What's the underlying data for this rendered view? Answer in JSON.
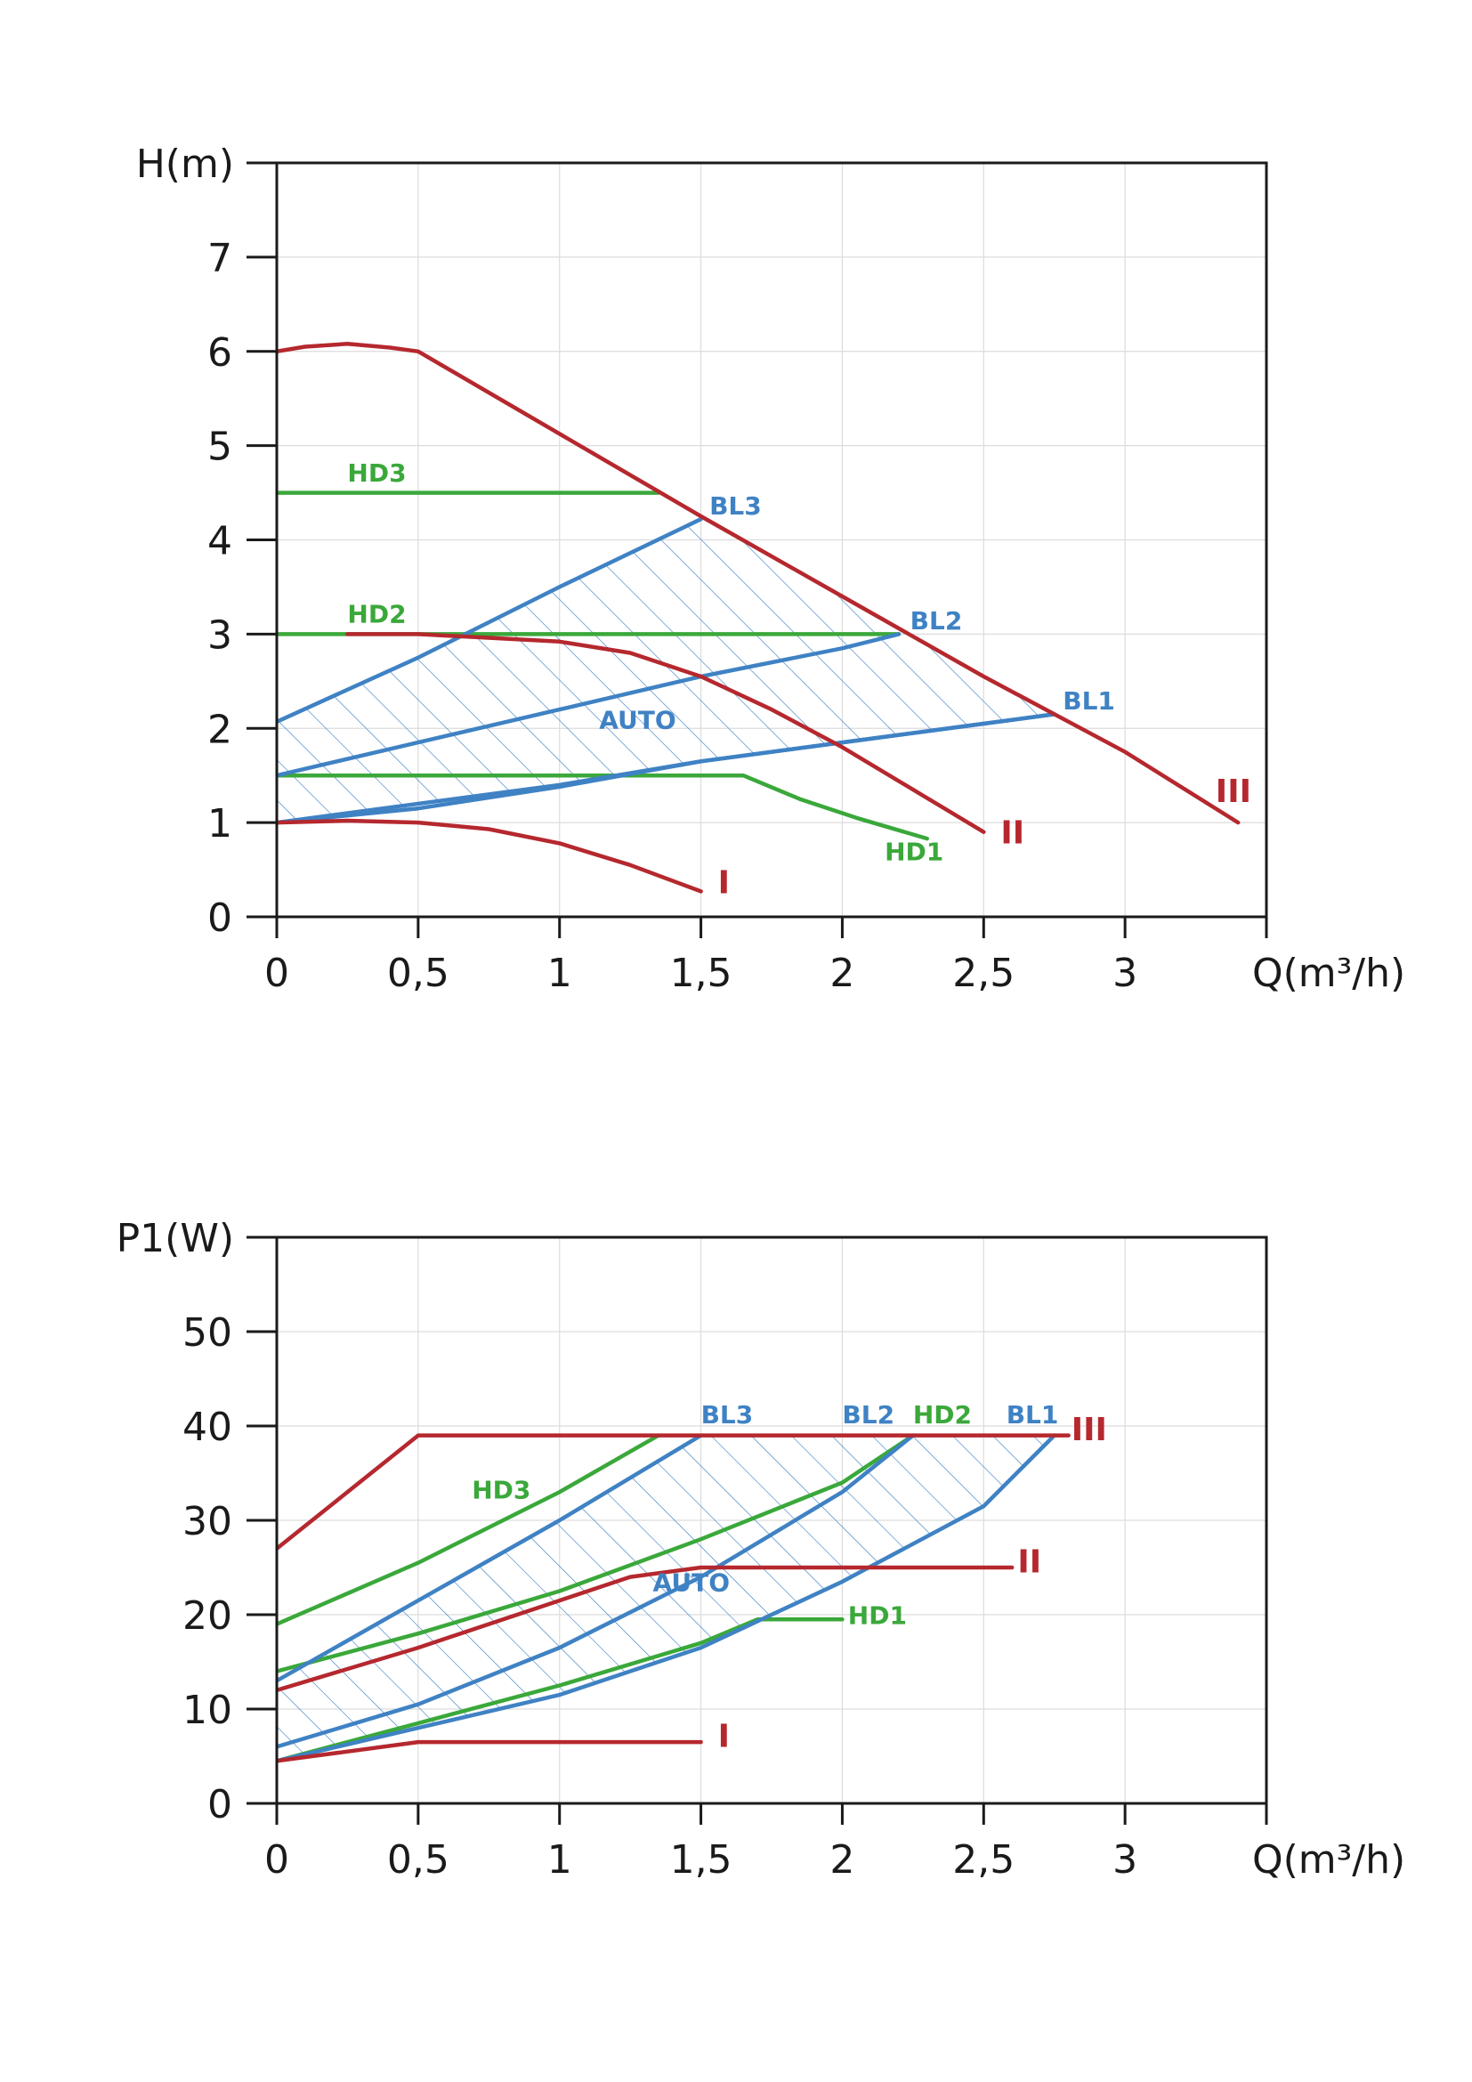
{
  "chart_data": [
    {
      "type": "line",
      "xlabel": "Q(m³/h)",
      "ylabel": "H(m)",
      "xlim": [
        0,
        3.5
      ],
      "ylim": [
        0,
        8
      ],
      "x_ticks": [
        0,
        0.5,
        1,
        1.5,
        2,
        2.5,
        3
      ],
      "x_tick_labels": [
        "0",
        "0,5",
        "1",
        "1,5",
        "2",
        "2,5",
        "3"
      ],
      "y_ticks": [
        0,
        1,
        2,
        3,
        4,
        5,
        6,
        7
      ],
      "y_tick_labels": [
        "0",
        "1",
        "2",
        "3",
        "4",
        "5",
        "6",
        "7"
      ],
      "grid": true,
      "hatched_region": "AUTO",
      "colors": {
        "red": "#b5282e",
        "blue": "#3f82c4",
        "green": "#3aa83a"
      },
      "series": [
        {
          "name": "I",
          "color": "red",
          "points": [
            [
              0,
              1.0
            ],
            [
              0.25,
              1.02
            ],
            [
              0.5,
              1.0
            ],
            [
              0.75,
              0.93
            ],
            [
              1.0,
              0.78
            ],
            [
              1.25,
              0.55
            ],
            [
              1.5,
              0.27
            ]
          ]
        },
        {
          "name": "II",
          "color": "red",
          "points": [
            [
              0.25,
              3.0
            ],
            [
              0.5,
              3.0
            ],
            [
              1.0,
              2.92
            ],
            [
              1.25,
              2.8
            ],
            [
              1.5,
              2.55
            ],
            [
              1.75,
              2.2
            ],
            [
              2.0,
              1.8
            ],
            [
              2.25,
              1.35
            ],
            [
              2.5,
              0.9
            ]
          ]
        },
        {
          "name": "III",
          "color": "red",
          "points": [
            [
              0,
              6.0
            ],
            [
              0.1,
              6.05
            ],
            [
              0.25,
              6.08
            ],
            [
              0.4,
              6.04
            ],
            [
              0.5,
              6.0
            ],
            [
              1.5,
              4.25
            ],
            [
              2.0,
              3.4
            ],
            [
              2.5,
              2.55
            ],
            [
              3.0,
              1.75
            ],
            [
              3.4,
              1.0
            ]
          ]
        },
        {
          "name": "HD1",
          "color": "green",
          "points": [
            [
              0,
              1.5
            ],
            [
              1.65,
              1.5
            ],
            [
              1.85,
              1.25
            ],
            [
              2.05,
              1.05
            ],
            [
              2.3,
              0.83
            ]
          ]
        },
        {
          "name": "HD2",
          "color": "green",
          "points": [
            [
              0,
              3.0
            ],
            [
              2.2,
              3.0
            ]
          ]
        },
        {
          "name": "HD3",
          "color": "green",
          "points": [
            [
              0,
              4.5
            ],
            [
              1.35,
              4.5
            ]
          ]
        },
        {
          "name": "BL1",
          "color": "blue",
          "points": [
            [
              0,
              1.0
            ],
            [
              1.0,
              1.4
            ],
            [
              1.5,
              1.65
            ],
            [
              2.0,
              1.85
            ],
            [
              2.5,
              2.05
            ],
            [
              2.75,
              2.15
            ]
          ]
        },
        {
          "name": "BL2",
          "color": "blue",
          "points": [
            [
              0,
              1.5
            ],
            [
              0.5,
              1.85
            ],
            [
              1.0,
              2.2
            ],
            [
              1.5,
              2.55
            ],
            [
              2.0,
              2.85
            ],
            [
              2.2,
              3.0
            ]
          ]
        },
        {
          "name": "BL3",
          "color": "blue",
          "points": [
            [
              0,
              2.07
            ],
            [
              0.5,
              2.75
            ],
            [
              1.0,
              3.5
            ],
            [
              1.5,
              4.22
            ]
          ]
        },
        {
          "name": "AUTO-lower",
          "color": "blue",
          "points": [
            [
              0,
              1.0
            ],
            [
              0.5,
              1.15
            ],
            [
              1.0,
              1.38
            ],
            [
              1.5,
              1.65
            ],
            [
              2.0,
              1.85
            ],
            [
              2.5,
              2.05
            ],
            [
              2.75,
              2.15
            ]
          ]
        }
      ],
      "labels": {
        "I": {
          "text": "I",
          "color": "red",
          "at": [
            1.56,
            0.25
          ]
        },
        "II": {
          "text": "II",
          "color": "red",
          "at": [
            2.56,
            0.78
          ]
        },
        "III": {
          "text": "III",
          "color": "red",
          "at": [
            3.32,
            1.22
          ]
        },
        "HD1": {
          "text": "HD1",
          "color": "green",
          "at": [
            2.15,
            0.6
          ]
        },
        "HD2": {
          "text": "HD2",
          "color": "green",
          "at": [
            0.25,
            3.12
          ]
        },
        "HD3": {
          "text": "HD3",
          "color": "green",
          "at": [
            0.25,
            4.62
          ]
        },
        "BL1": {
          "text": "BL1",
          "color": "blue",
          "at": [
            2.78,
            2.2
          ]
        },
        "BL2": {
          "text": "BL2",
          "color": "blue",
          "at": [
            2.24,
            3.05
          ]
        },
        "BL3": {
          "text": "BL3",
          "color": "blue",
          "at": [
            1.53,
            4.27
          ]
        },
        "AUTO": {
          "text": "AUTO",
          "color": "blue",
          "at": [
            1.14,
            2.0
          ]
        }
      }
    },
    {
      "type": "line",
      "xlabel": "Q(m³/h)",
      "ylabel": "P1(W)",
      "xlim": [
        0,
        3.5
      ],
      "ylim": [
        0,
        60
      ],
      "x_ticks": [
        0,
        0.5,
        1,
        1.5,
        2,
        2.5,
        3
      ],
      "x_tick_labels": [
        "0",
        "0,5",
        "1",
        "1,5",
        "2",
        "2,5",
        "3"
      ],
      "y_ticks": [
        0,
        10,
        20,
        30,
        40,
        50
      ],
      "y_tick_labels": [
        "0",
        "10",
        "20",
        "30",
        "40",
        "50"
      ],
      "grid": true,
      "hatched_region": "AUTO",
      "colors": {
        "red": "#b5282e",
        "blue": "#3f82c4",
        "green": "#3aa83a"
      },
      "series": [
        {
          "name": "I",
          "color": "red",
          "points": [
            [
              0,
              4.5
            ],
            [
              0.5,
              6.5
            ],
            [
              1.5,
              6.5
            ]
          ]
        },
        {
          "name": "II",
          "color": "red",
          "points": [
            [
              0,
              12
            ],
            [
              0.5,
              16.5
            ],
            [
              1.0,
              21.5
            ],
            [
              1.25,
              24
            ],
            [
              1.5,
              25
            ],
            [
              2.6,
              25
            ]
          ]
        },
        {
          "name": "III",
          "color": "red",
          "points": [
            [
              0,
              27
            ],
            [
              0.5,
              39
            ],
            [
              2.8,
              39
            ]
          ]
        },
        {
          "name": "HD1",
          "color": "green",
          "points": [
            [
              0,
              4.5
            ],
            [
              0.5,
              8.5
            ],
            [
              1.0,
              12.5
            ],
            [
              1.5,
              17.0
            ],
            [
              1.7,
              19.5
            ],
            [
              2.0,
              19.5
            ]
          ]
        },
        {
          "name": "HD2",
          "color": "green",
          "points": [
            [
              0,
              14
            ],
            [
              0.5,
              18
            ],
            [
              1.0,
              22.5
            ],
            [
              1.5,
              28
            ],
            [
              2.0,
              34
            ],
            [
              2.25,
              39
            ]
          ]
        },
        {
          "name": "HD3",
          "color": "green",
          "points": [
            [
              0,
              19
            ],
            [
              0.5,
              25.5
            ],
            [
              1.0,
              33
            ],
            [
              1.35,
              39
            ]
          ]
        },
        {
          "name": "BL1",
          "color": "blue",
          "points": [
            [
              0,
              4.5
            ],
            [
              0.5,
              8
            ],
            [
              1.0,
              11.5
            ],
            [
              1.5,
              16.5
            ],
            [
              2.0,
              23.5
            ],
            [
              2.5,
              31.5
            ],
            [
              2.75,
              39
            ]
          ]
        },
        {
          "name": "BL2",
          "color": "blue",
          "points": [
            [
              0,
              6
            ],
            [
              0.5,
              10.5
            ],
            [
              1.0,
              16.5
            ],
            [
              1.5,
              24
            ],
            [
              2.0,
              33
            ],
            [
              2.25,
              39
            ]
          ]
        },
        {
          "name": "BL3",
          "color": "blue",
          "points": [
            [
              0,
              13
            ],
            [
              0.5,
              21.5
            ],
            [
              1.0,
              30
            ],
            [
              1.5,
              39
            ]
          ]
        }
      ],
      "labels": {
        "I": {
          "text": "I",
          "color": "red",
          "at": [
            1.56,
            6.0
          ]
        },
        "II": {
          "text": "II",
          "color": "red",
          "at": [
            2.62,
            24.5
          ]
        },
        "III": {
          "text": "III",
          "color": "red",
          "at": [
            2.81,
            38.5
          ]
        },
        "HD1": {
          "text": "HD1",
          "color": "green",
          "at": [
            2.02,
            19.0
          ]
        },
        "HD2": {
          "text": "HD2",
          "color": "green",
          "at": [
            2.25,
            40.3
          ]
        },
        "HD3": {
          "text": "HD3",
          "color": "green",
          "at": [
            0.69,
            32.3
          ]
        },
        "BL1": {
          "text": "BL1",
          "color": "blue",
          "at": [
            2.58,
            40.3
          ]
        },
        "BL2": {
          "text": "BL2",
          "color": "blue",
          "at": [
            2.0,
            40.3
          ]
        },
        "BL3": {
          "text": "BL3",
          "color": "blue",
          "at": [
            1.5,
            40.3
          ]
        },
        "AUTO": {
          "text": "AUTO",
          "color": "blue",
          "at": [
            1.33,
            22.5
          ]
        }
      }
    }
  ]
}
